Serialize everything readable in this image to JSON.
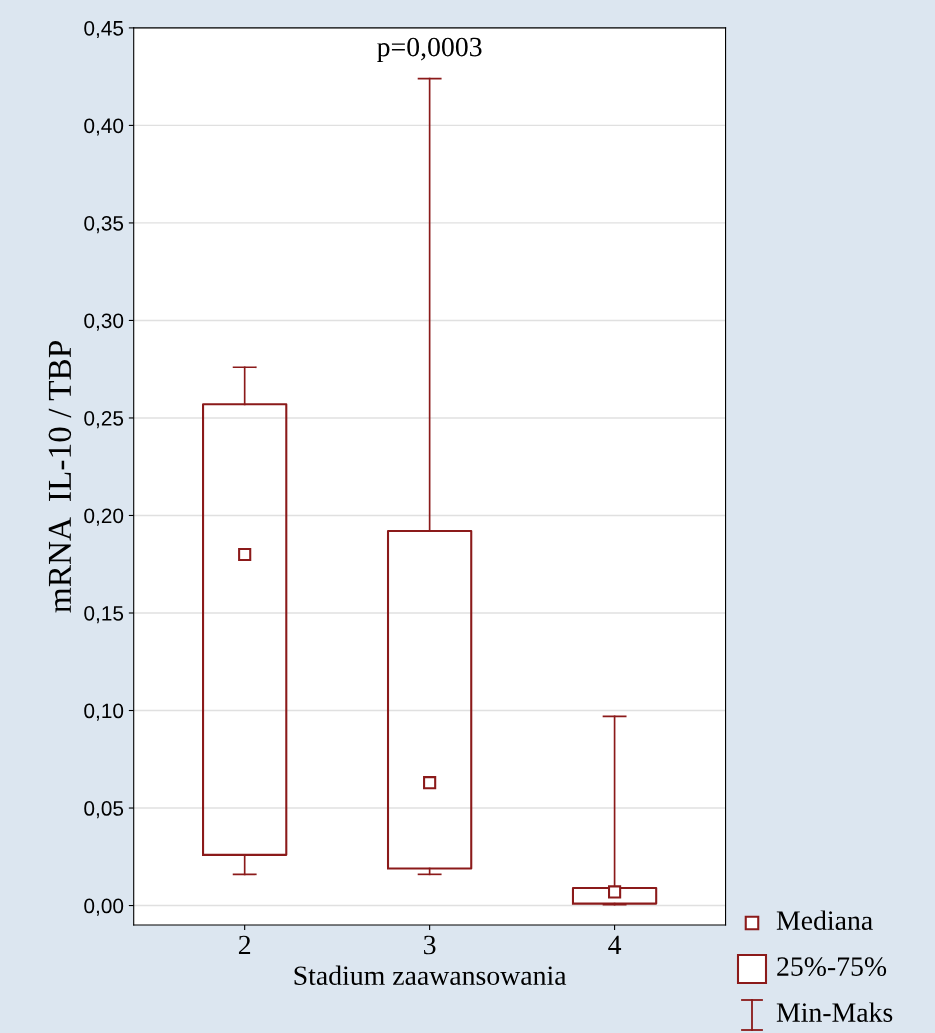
{
  "chart_data": {
    "type": "box",
    "xlabel": "Stadium zaawansowania",
    "ylabel": "mRNA  IL-10 / TBP",
    "categories": [
      "2",
      "3",
      "4"
    ],
    "boxes": [
      {
        "low": 0.016,
        "q1": 0.026,
        "median": 0.18,
        "q3": 0.257,
        "high": 0.276
      },
      {
        "low": 0.016,
        "q1": 0.019,
        "median": 0.063,
        "q3": 0.192,
        "high": 0.424
      },
      {
        "low": 0.0005,
        "q1": 0.001,
        "median": 0.007,
        "q3": 0.009,
        "high": 0.097
      }
    ],
    "color": "#8b1a1a",
    "ylim": [
      -0.01,
      0.45
    ],
    "yticks": [
      {
        "value": 0,
        "label": "0,00"
      },
      {
        "value": 0.05,
        "label": "0,05"
      },
      {
        "value": 0.1,
        "label": "0,10"
      },
      {
        "value": 0.15,
        "label": "0,15"
      },
      {
        "value": 0.2,
        "label": "0,20"
      },
      {
        "value": 0.25,
        "label": "0,25"
      },
      {
        "value": 0.3,
        "label": "0,30"
      },
      {
        "value": 0.35,
        "label": "0,35"
      },
      {
        "value": 0.4,
        "label": "0,40"
      },
      {
        "value": 0.45,
        "label": "0,45"
      }
    ],
    "grid": "y",
    "marker": "square",
    "annotations": [
      "p=0,0003",
      "Mediana",
      "25%-75%",
      "Min-Maks"
    ]
  }
}
